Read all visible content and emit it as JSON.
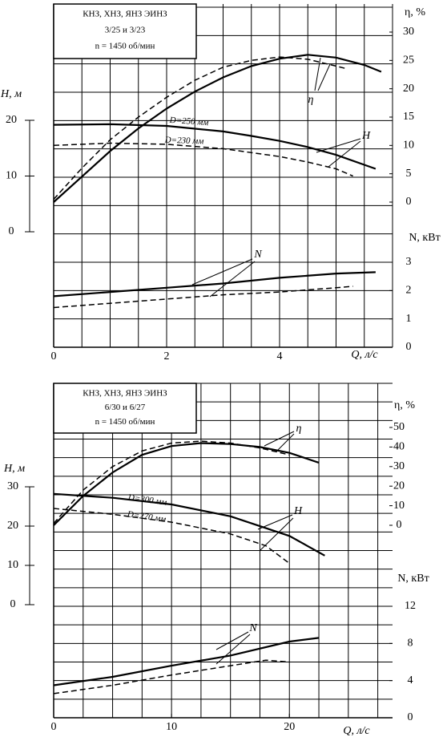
{
  "chart_data": [
    {
      "type": "line",
      "title_lines": [
        "КНЗ, ХНЗ, ЯНЗ ЭИНЗ",
        "3/25 и 3/23",
        "n = 1450 об/мин"
      ],
      "xlabel": "Q, л/с",
      "ylabel": "H, м",
      "y2label": "η, %",
      "y3label": "N, кВт",
      "xlim": [
        0,
        6
      ],
      "xticks": [
        0,
        2,
        4
      ],
      "xgrid": [
        0,
        0.5,
        1,
        1.5,
        2,
        2.5,
        3,
        3.5,
        4,
        4.5,
        5,
        5.5,
        6
      ],
      "ylim": [
        0,
        20
      ],
      "yticks": [
        0,
        10,
        20
      ],
      "y2lim": [
        0,
        30
      ],
      "y2ticks": [
        0,
        5,
        10,
        15,
        20,
        25,
        30
      ],
      "y3lim": [
        0,
        3
      ],
      "y3ticks": [
        0,
        1,
        2,
        3
      ],
      "y3grid": [
        0,
        1,
        2,
        3,
        4,
        5,
        6,
        7,
        8,
        9,
        10,
        11,
        12
      ],
      "color": "#000000",
      "series": [
        {
          "axis": "y2",
          "style": "solid",
          "x": [
            0,
            0.5,
            1,
            1.5,
            2,
            2.5,
            3,
            3.5,
            4,
            4.5,
            5,
            5.5,
            5.8
          ],
          "values": [
            0,
            4.5,
            9,
            13,
            16.5,
            19.5,
            22,
            24,
            25.3,
            26,
            25.5,
            24.2,
            23
          ]
        },
        {
          "axis": "y2",
          "style": "dashed",
          "x": [
            0,
            0.5,
            1,
            1.5,
            2,
            2.5,
            3,
            3.5,
            4,
            4.5,
            5,
            5.2
          ],
          "values": [
            0.5,
            6,
            11,
            15,
            18.5,
            21.5,
            23.8,
            25,
            25.6,
            25.2,
            24,
            23.5
          ]
        },
        {
          "axis": "y",
          "style": "solid",
          "x": [
            0,
            1,
            2,
            3,
            3.5,
            4,
            4.5,
            5,
            5.7
          ],
          "values": [
            19.2,
            19.3,
            19,
            18,
            17.2,
            16.3,
            15.2,
            13.8,
            11.3
          ]
        },
        {
          "axis": "y",
          "style": "dashed",
          "x": [
            0,
            1,
            2,
            3,
            4,
            4.5,
            5,
            5.3
          ],
          "values": [
            15.5,
            15.9,
            15.7,
            14.9,
            13.5,
            12.5,
            11.3,
            10
          ]
        },
        {
          "axis": "y3",
          "style": "solid",
          "x": [
            0,
            1,
            2,
            3,
            4,
            5,
            5.7
          ],
          "values": [
            1.8,
            1.95,
            2.1,
            2.25,
            2.45,
            2.6,
            2.65
          ]
        },
        {
          "axis": "y3",
          "style": "dashed",
          "x": [
            0,
            1,
            2,
            3,
            4,
            5,
            5.3
          ],
          "values": [
            1.4,
            1.55,
            1.7,
            1.85,
            1.95,
            2.1,
            2.15
          ]
        }
      ],
      "annotations": [
        "η",
        "H",
        "N",
        "D=250 мм",
        "D=230 мм"
      ]
    },
    {
      "type": "line",
      "title_lines": [
        "КНЗ, ХНЗ, ЯНЗ ЭИНЗ",
        "6/30 и 6/27",
        "n = 1450 об/мин"
      ],
      "xlabel": "Q, л/с",
      "ylabel": "H, м",
      "y2label": "η, %",
      "y3label": "N, кВт",
      "xlim": [
        0,
        28.75
      ],
      "xticks": [
        0,
        10,
        20
      ],
      "xgrid": [
        0,
        2.5,
        5,
        7.5,
        10,
        12.5,
        15,
        17.5,
        20,
        22.5,
        25,
        27.5
      ],
      "ylim": [
        0,
        30
      ],
      "yticks": [
        0,
        10,
        20,
        30
      ],
      "y2lim": [
        0,
        50
      ],
      "y2ticks": [
        0,
        10,
        20,
        30,
        40,
        50
      ],
      "y3lim": [
        0,
        12
      ],
      "y3ticks": [
        0,
        4,
        8,
        12
      ],
      "y3grid": [
        0,
        2,
        4,
        6,
        8,
        10,
        12,
        14,
        16,
        18,
        20,
        22,
        24,
        26,
        28,
        30,
        32,
        34,
        36
      ],
      "color": "#000000",
      "series": [
        {
          "axis": "y2",
          "style": "solid",
          "x": [
            0,
            2.5,
            5,
            7.5,
            10,
            12.5,
            15,
            17.5,
            20,
            22.5
          ],
          "values": [
            0,
            15,
            27,
            36,
            40.5,
            42,
            41.5,
            40,
            37,
            32
          ]
        },
        {
          "axis": "y2",
          "style": "dashed",
          "x": [
            0,
            2.5,
            5,
            7.5,
            10,
            12.5,
            15,
            17.5,
            20
          ],
          "values": [
            1,
            18,
            30,
            38,
            42,
            43,
            42,
            39.5,
            36
          ]
        },
        {
          "axis": "y",
          "style": "solid",
          "x": [
            0,
            5,
            10,
            15,
            20,
            23
          ],
          "values": [
            28.2,
            27.2,
            25.5,
            22.5,
            17.5,
            12.5
          ]
        },
        {
          "axis": "y",
          "style": "dashed",
          "x": [
            0,
            5,
            10,
            15,
            18,
            20
          ],
          "values": [
            24.5,
            23,
            21,
            18,
            15,
            10.5
          ]
        },
        {
          "axis": "y3",
          "style": "solid",
          "x": [
            0,
            5,
            10,
            15,
            20,
            22.5
          ],
          "values": [
            3.5,
            4.4,
            5.6,
            6.7,
            8.2,
            8.6
          ]
        },
        {
          "axis": "y3",
          "style": "dashed",
          "x": [
            0,
            5,
            10,
            15,
            18,
            20
          ],
          "values": [
            2.6,
            3.5,
            4.6,
            5.6,
            6.2,
            6
          ]
        }
      ],
      "annotations": [
        "η",
        "H",
        "N",
        "D=300 мм",
        "D=270 мм"
      ]
    }
  ]
}
